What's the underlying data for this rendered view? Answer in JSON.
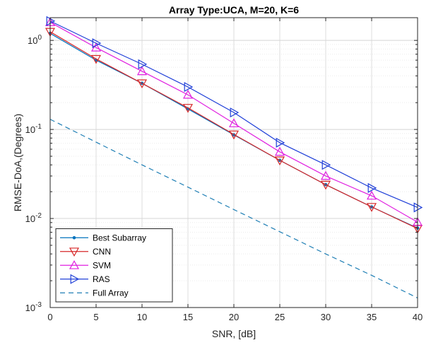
{
  "chart_data": {
    "type": "line",
    "title": "Array Type:UCA, M=20, K=6",
    "xlabel": "SNR, [dB]",
    "ylabel": "RMSE-DoA,(Degrees)",
    "xlim": [
      0,
      40
    ],
    "ylim": [
      0.001,
      1.8
    ],
    "yscale": "log",
    "grid": true,
    "x_ticks": [
      0,
      5,
      10,
      15,
      20,
      25,
      30,
      35,
      40
    ],
    "y_ticks": [
      {
        "base": "10",
        "exp": "0",
        "value": 1
      },
      {
        "base": "10",
        "exp": "-1",
        "value": 0.1
      },
      {
        "base": "10",
        "exp": "-2",
        "value": 0.01
      },
      {
        "base": "10",
        "exp": "-3",
        "value": 0.001
      }
    ],
    "legend_position": "bottom-left",
    "x": [
      0,
      5,
      10,
      15,
      20,
      25,
      30,
      35,
      40
    ],
    "series": [
      {
        "name": "Best Subarray",
        "color": "#0072BD",
        "marker": "dot",
        "dash": "solid",
        "values": [
          1.2,
          0.6,
          0.33,
          0.17,
          0.087,
          0.045,
          0.024,
          0.0135,
          0.0078
        ]
      },
      {
        "name": "CNN",
        "color": "#D62728",
        "marker": "triangle-down",
        "dash": "solid",
        "values": [
          1.25,
          0.62,
          0.33,
          0.175,
          0.088,
          0.045,
          0.024,
          0.0135,
          0.0077
        ]
      },
      {
        "name": "SVM",
        "color": "#E020E0",
        "marker": "triangle-up",
        "dash": "solid",
        "values": [
          1.6,
          0.83,
          0.45,
          0.245,
          0.117,
          0.056,
          0.03,
          0.018,
          0.0091
        ]
      },
      {
        "name": "RAS",
        "color": "#1F3FD8",
        "marker": "triangle-right",
        "dash": "solid",
        "values": [
          1.65,
          0.93,
          0.54,
          0.3,
          0.155,
          0.071,
          0.04,
          0.022,
          0.0133
        ]
      },
      {
        "name": "Full Array",
        "color": "#1F7FB5",
        "marker": "none",
        "dash": "dashed",
        "values": [
          0.13,
          0.072,
          0.04,
          0.0225,
          0.0126,
          0.0071,
          0.004,
          0.0023,
          0.00128
        ]
      }
    ]
  }
}
